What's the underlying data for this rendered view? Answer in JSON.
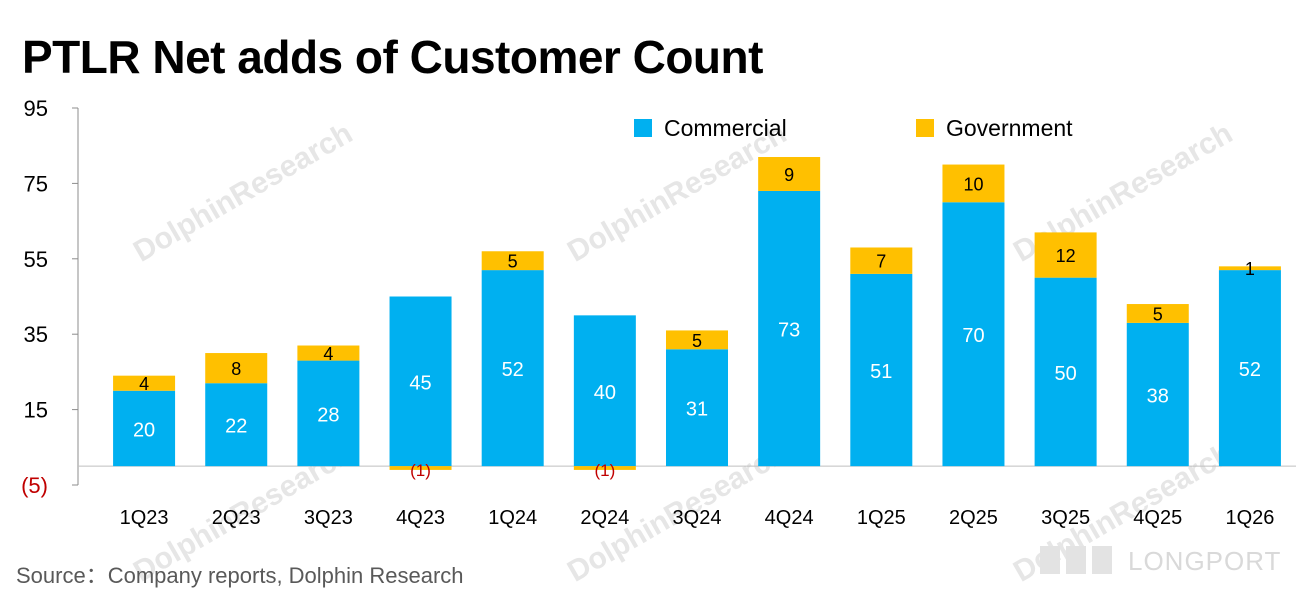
{
  "title": "PTLR Net adds of Customer Count",
  "source": "Source：Company reports, Dolphin Research",
  "watermark": "DolphinResearch",
  "brand": "LONGPORT",
  "chart_data": {
    "type": "bar",
    "stacked": true,
    "title": "PTLR Net adds of Customer Count",
    "categories": [
      "1Q23",
      "2Q23",
      "3Q23",
      "4Q23",
      "1Q24",
      "2Q24",
      "3Q24",
      "4Q24",
      "1Q25",
      "2Q25",
      "3Q25",
      "4Q25",
      "1Q26"
    ],
    "series": [
      {
        "name": "Commercial",
        "color": "#00B0F0",
        "values": [
          20,
          22,
          28,
          45,
          52,
          40,
          31,
          73,
          51,
          70,
          50,
          38,
          52
        ]
      },
      {
        "name": "Government",
        "color": "#FFC000",
        "values": [
          4,
          8,
          4,
          -1,
          5,
          -1,
          5,
          9,
          7,
          10,
          12,
          5,
          1
        ]
      }
    ],
    "data_labels": {
      "Commercial": [
        "20",
        "22",
        "28",
        "45",
        "52",
        "40",
        "31",
        "73",
        "51",
        "70",
        "50",
        "38",
        "52"
      ],
      "Government": [
        "4",
        "8",
        "4",
        "(1)",
        "5",
        "(1)",
        "5",
        "9",
        "7",
        "10",
        "12",
        "5",
        "1"
      ]
    },
    "y_ticks": [
      95,
      75,
      55,
      35,
      15,
      -5
    ],
    "y_tick_labels": [
      "95",
      "75",
      "55",
      "35",
      "15",
      "(5)"
    ],
    "ylim": [
      -5,
      95
    ],
    "legend_position": "top-right",
    "grid": false
  }
}
